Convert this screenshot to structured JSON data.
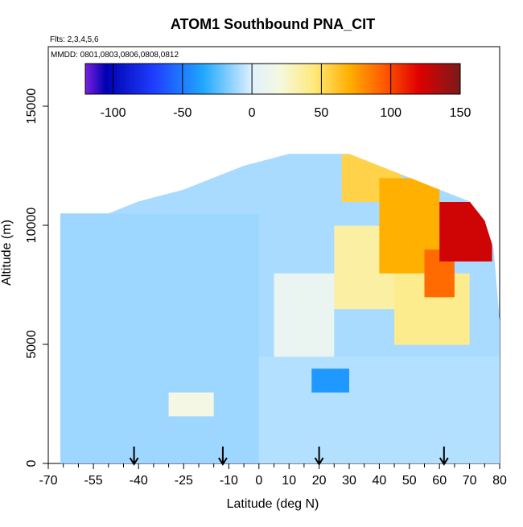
{
  "chart_data": {
    "type": "heatmap",
    "title": "ATOM1 Southbound PNA_CIT",
    "subtitle_flights": "Flts: 2,3,4,5,6",
    "subtitle_dates": "MMDD: 0801,0803,0806,0808,0812",
    "xlabel": "Latitude (deg N)",
    "ylabel": "Altitude (m)",
    "xlim": [
      -70,
      80
    ],
    "ylim": [
      0,
      17500
    ],
    "x_tick_labels": [
      "-70",
      "-55",
      "-40",
      "-25",
      "-10",
      "0",
      "10",
      "20",
      "30",
      "40",
      "50",
      "60",
      "70",
      "80"
    ],
    "x_tick_values": [
      -70,
      -55,
      -40,
      -25,
      -10,
      0,
      10,
      20,
      30,
      40,
      50,
      60,
      70,
      80
    ],
    "y_tick_labels": [
      "0",
      "5000",
      "10000",
      "15000"
    ],
    "y_tick_values": [
      0,
      5000,
      10000,
      15000
    ],
    "colorbar": {
      "range": [
        -120,
        150
      ],
      "tick_labels": [
        "-100",
        "-50",
        "0",
        "50",
        "100",
        "150"
      ],
      "tick_values": [
        -100,
        -50,
        0,
        50,
        100,
        150
      ],
      "stops": [
        {
          "v": -120,
          "color": "#7b1fe0"
        },
        {
          "v": -105,
          "color": "#0000b0"
        },
        {
          "v": -70,
          "color": "#1f3fff"
        },
        {
          "v": -35,
          "color": "#1fa8ff"
        },
        {
          "v": 0,
          "color": "#dff0ff"
        },
        {
          "v": 20,
          "color": "#f5f8e0"
        },
        {
          "v": 45,
          "color": "#ffe97a"
        },
        {
          "v": 70,
          "color": "#ffb000"
        },
        {
          "v": 95,
          "color": "#ff5a00"
        },
        {
          "v": 120,
          "color": "#e00000"
        },
        {
          "v": 150,
          "color": "#7a1a1a"
        }
      ]
    },
    "profile_arrows_latitude": [
      -41.5,
      -12,
      20,
      61.5
    ],
    "envelope": {
      "lat": [
        -66,
        -66,
        -50,
        -40,
        -25,
        -15,
        -5,
        10,
        20,
        30,
        40,
        50,
        60,
        70,
        75,
        78,
        80,
        80
      ],
      "top_alt": [
        0,
        10500,
        10500,
        11000,
        11500,
        12000,
        12500,
        13000,
        13000,
        13000,
        12500,
        12000,
        11500,
        11000,
        10200,
        9000,
        6000,
        0
      ]
    },
    "regions": [
      {
        "lat": [
          60,
          78
        ],
        "alt": [
          8500,
          10800
        ],
        "v": 125
      },
      {
        "lat": [
          55,
          66
        ],
        "alt": [
          7000,
          9000
        ],
        "v": 90
      },
      {
        "lat": [
          40,
          60
        ],
        "alt": [
          8000,
          12000
        ],
        "v": 70
      },
      {
        "lat": [
          27,
          48
        ],
        "alt": [
          10800,
          13000
        ],
        "v": 55
      },
      {
        "lat": [
          25,
          45
        ],
        "alt": [
          6500,
          10000
        ],
        "v": 35
      },
      {
        "lat": [
          45,
          70
        ],
        "alt": [
          5000,
          8000
        ],
        "v": 40
      },
      {
        "lat": [
          5,
          25
        ],
        "alt": [
          4500,
          8000
        ],
        "v": 10
      },
      {
        "lat": [
          -70,
          0
        ],
        "alt": [
          0,
          10500
        ],
        "v": -12
      },
      {
        "lat": [
          0,
          80
        ],
        "alt": [
          0,
          4500
        ],
        "v": -8
      },
      {
        "lat": [
          18,
          30
        ],
        "alt": [
          3000,
          4200
        ],
        "v": -40
      },
      {
        "lat": [
          -30,
          -15
        ],
        "alt": [
          1800,
          3000
        ],
        "v": 18
      }
    ]
  }
}
